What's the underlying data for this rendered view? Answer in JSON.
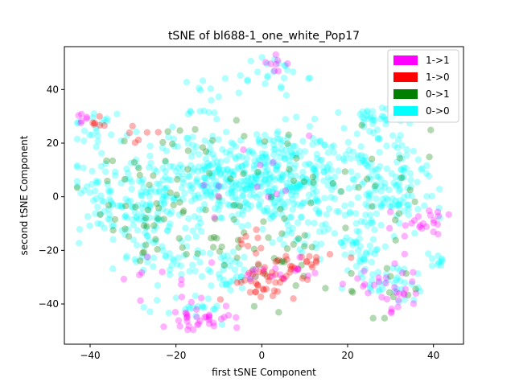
{
  "chart_data": {
    "type": "scatter",
    "title": "tSNE of bl688-1_one_white_Pop17",
    "xlabel": "first tSNE Component",
    "ylabel": "second tSNE Component",
    "xlim": [
      -46,
      47
    ],
    "ylim": [
      -55,
      56
    ],
    "x_ticks": [
      -40,
      -20,
      0,
      20,
      40
    ],
    "y_ticks": [
      -40,
      -20,
      0,
      20,
      40
    ],
    "grid": false,
    "legend_position": "top-right",
    "series": [
      {
        "name": "0->0",
        "color": "#00ffff",
        "clusters": [
          {
            "cx": 0,
            "cy": 8,
            "sx": 9,
            "sy": 9,
            "n": 260
          },
          {
            "cx": -10,
            "cy": 6,
            "sx": 7,
            "sy": 9,
            "n": 110
          },
          {
            "cx": 12,
            "cy": 6,
            "sx": 7,
            "sy": 8,
            "n": 90
          },
          {
            "cx": -28,
            "cy": -6,
            "sx": 7,
            "sy": 6,
            "n": 110
          },
          {
            "cx": -22,
            "cy": 10,
            "sx": 6,
            "sy": 8,
            "n": 50
          },
          {
            "cx": -38,
            "cy": 25,
            "sx": 3,
            "sy": 4,
            "n": 25
          },
          {
            "cx": -38,
            "cy": 5,
            "sx": 3,
            "sy": 4,
            "n": 20
          },
          {
            "cx": 25,
            "cy": 28,
            "sx": 3,
            "sy": 3,
            "n": 30
          },
          {
            "cx": 30,
            "cy": 10,
            "sx": 6,
            "sy": 8,
            "n": 80
          },
          {
            "cx": 28,
            "cy": -4,
            "sx": 6,
            "sy": 6,
            "n": 60
          },
          {
            "cx": 22,
            "cy": -18,
            "sx": 4,
            "sy": 5,
            "n": 40
          },
          {
            "cx": -20,
            "cy": -22,
            "sx": 6,
            "sy": 5,
            "n": 40
          },
          {
            "cx": -8,
            "cy": -28,
            "sx": 5,
            "sy": 4,
            "n": 35
          },
          {
            "cx": 2,
            "cy": 45,
            "sx": 4,
            "sy": 4,
            "n": 25
          },
          {
            "cx": -15,
            "cy": -42,
            "sx": 4,
            "sy": 3,
            "n": 20
          },
          {
            "cx": 40,
            "cy": -24,
            "sx": 1.5,
            "sy": 2,
            "n": 10
          },
          {
            "cx": 30,
            "cy": -32,
            "sx": 5,
            "sy": 4,
            "n": 35
          },
          {
            "cx": 10,
            "cy": -10,
            "sx": 6,
            "sy": 6,
            "n": 40
          },
          {
            "cx": -14,
            "cy": 35,
            "sx": 3,
            "sy": 5,
            "n": 15
          }
        ]
      },
      {
        "name": "0->1",
        "color": "#008000",
        "clusters": [
          {
            "cx": -22,
            "cy": 5,
            "sx": 9,
            "sy": 12,
            "n": 35
          },
          {
            "cx": 0,
            "cy": 5,
            "sx": 12,
            "sy": 15,
            "n": 35
          },
          {
            "cx": 28,
            "cy": 5,
            "sx": 8,
            "sy": 10,
            "n": 20
          },
          {
            "cx": -30,
            "cy": -10,
            "sx": 6,
            "sy": 6,
            "n": 15
          },
          {
            "cx": 5,
            "cy": -25,
            "sx": 8,
            "sy": 8,
            "n": 20
          },
          {
            "cx": -12,
            "cy": -18,
            "sx": 4,
            "sy": 3,
            "n": 10
          },
          {
            "cx": 30,
            "cy": -35,
            "sx": 5,
            "sy": 5,
            "n": 12
          }
        ]
      },
      {
        "name": "1->0",
        "color": "#ff0000",
        "clusters": [
          {
            "cx": 8,
            "cy": -24,
            "sx": 4,
            "sy": 3,
            "n": 25
          },
          {
            "cx": 0,
            "cy": -32,
            "sx": 3,
            "sy": 3,
            "n": 25
          },
          {
            "cx": 5,
            "cy": -30,
            "sx": 3,
            "sy": 3,
            "n": 12
          },
          {
            "cx": -3,
            "cy": -14,
            "sx": 2,
            "sy": 2,
            "n": 6
          },
          {
            "cx": -38,
            "cy": 27,
            "sx": 2,
            "sy": 2,
            "n": 6
          },
          {
            "cx": -28,
            "cy": 20,
            "sx": 2,
            "sy": 3,
            "n": 6
          }
        ]
      },
      {
        "name": "1->1",
        "color": "#ff00ff",
        "clusters": [
          {
            "cx": -42,
            "cy": 29,
            "sx": 1.2,
            "sy": 1,
            "n": 6
          },
          {
            "cx": -15,
            "cy": -45,
            "sx": 4,
            "sy": 3,
            "n": 35
          },
          {
            "cx": 3,
            "cy": 50,
            "sx": 1.5,
            "sy": 2,
            "n": 8
          },
          {
            "cx": 30,
            "cy": -35,
            "sx": 5,
            "sy": 4,
            "n": 30
          },
          {
            "cx": 35,
            "cy": -12,
            "sx": 4,
            "sy": 4,
            "n": 15
          },
          {
            "cx": 40,
            "cy": -8,
            "sx": 2,
            "sy": 2,
            "n": 8
          },
          {
            "cx": 5,
            "cy": -28,
            "sx": 5,
            "sy": 3,
            "n": 15
          },
          {
            "cx": -20,
            "cy": -30,
            "sx": 6,
            "sy": 5,
            "n": 10
          },
          {
            "cx": -5,
            "cy": 10,
            "sx": 10,
            "sy": 10,
            "n": 12
          }
        ]
      }
    ],
    "legend": [
      {
        "label": "1->1",
        "color": "#ff00ff"
      },
      {
        "label": "1->0",
        "color": "#ff0000"
      },
      {
        "label": "0->1",
        "color": "#008000"
      },
      {
        "label": "0->0",
        "color": "#00ffff"
      }
    ]
  }
}
